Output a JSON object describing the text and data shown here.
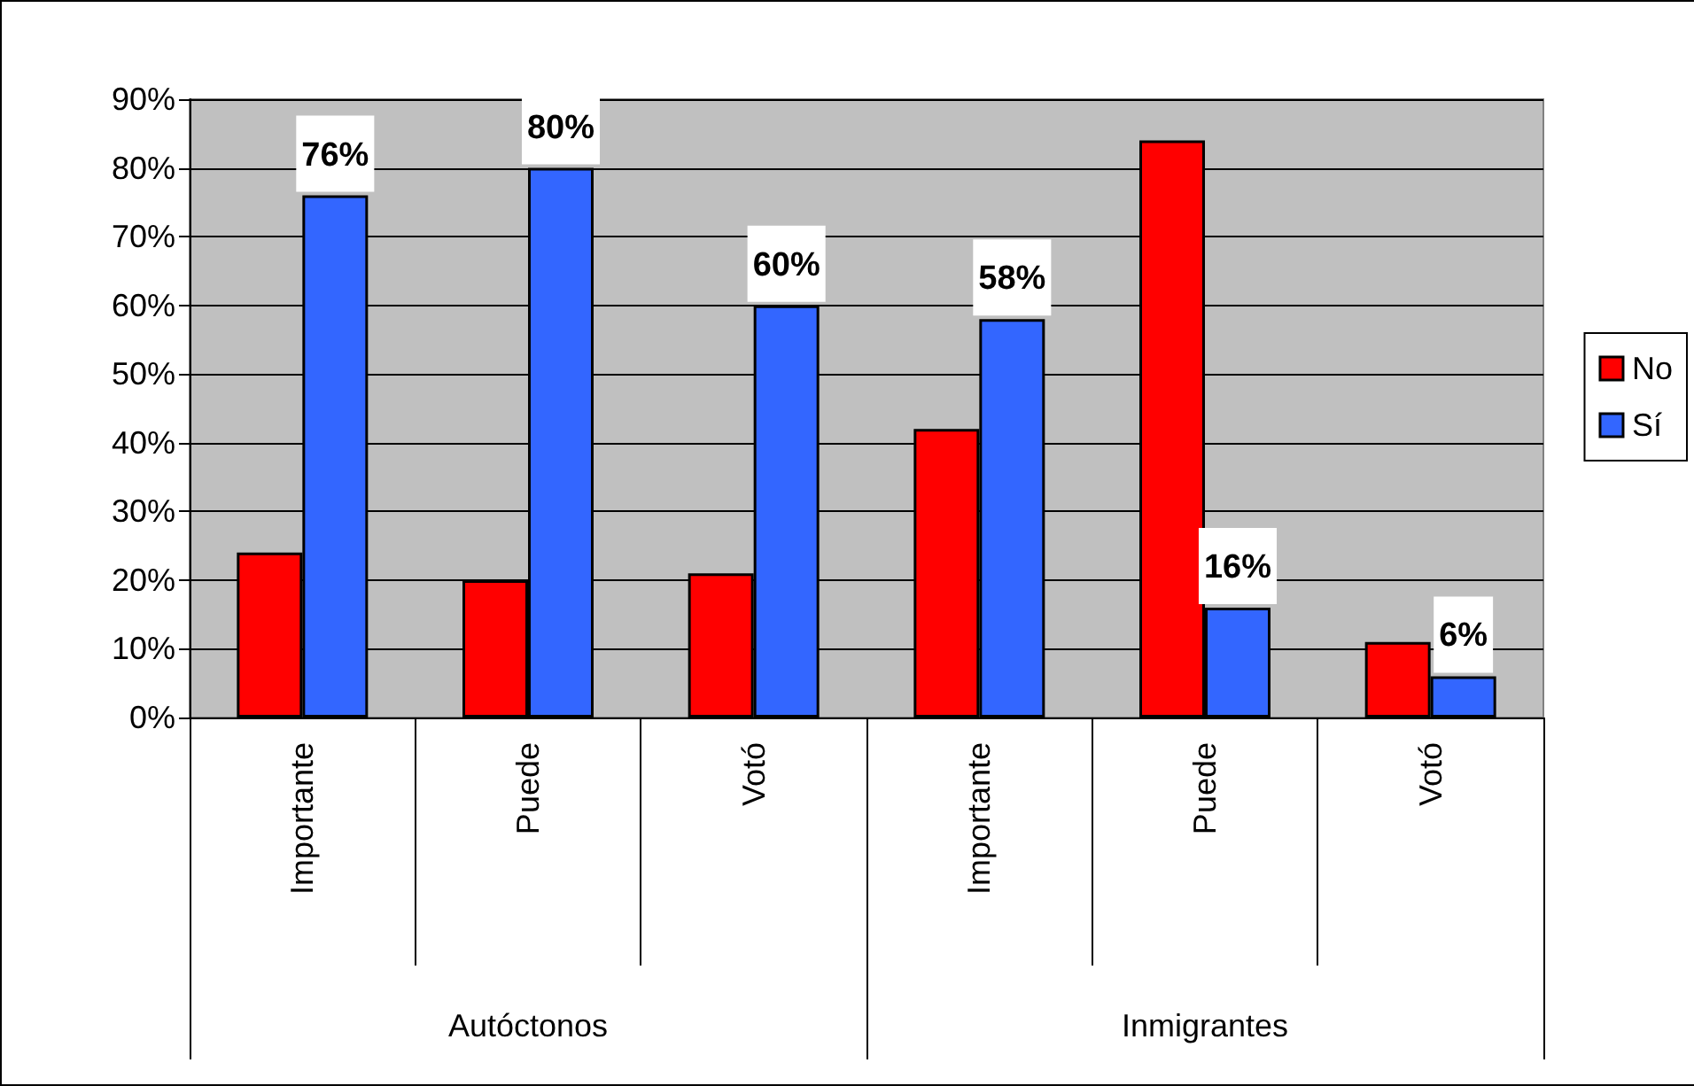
{
  "chart_data": {
    "type": "bar",
    "categories": [
      "Importante",
      "Puede",
      "Votó",
      "Importante",
      "Puede",
      "Votó"
    ],
    "series": [
      {
        "name": "No",
        "color": "#ff0000",
        "values": [
          24,
          20,
          21,
          42,
          84,
          11
        ]
      },
      {
        "name": "Sí",
        "color": "#3366ff",
        "values": [
          76,
          80,
          60,
          58,
          16,
          6
        ],
        "value_labels": [
          "76%",
          "80%",
          "60%",
          "58%",
          "16%",
          "6%"
        ]
      }
    ],
    "ylim": [
      0,
      90
    ],
    "yticks": [
      {
        "value": 0,
        "label": "0%"
      },
      {
        "value": 10,
        "label": "10%"
      },
      {
        "value": 20,
        "label": "20%"
      },
      {
        "value": 30,
        "label": "30%"
      },
      {
        "value": 40,
        "label": "40%"
      },
      {
        "value": 50,
        "label": "50%"
      },
      {
        "value": 60,
        "label": "60%"
      },
      {
        "value": 70,
        "label": "70%"
      },
      {
        "value": 80,
        "label": "80%"
      },
      {
        "value": 90,
        "label": "90%"
      }
    ],
    "grid": "y",
    "legend": "right",
    "annotations": [
      "Autóctonos",
      "Inmigrantes"
    ]
  }
}
